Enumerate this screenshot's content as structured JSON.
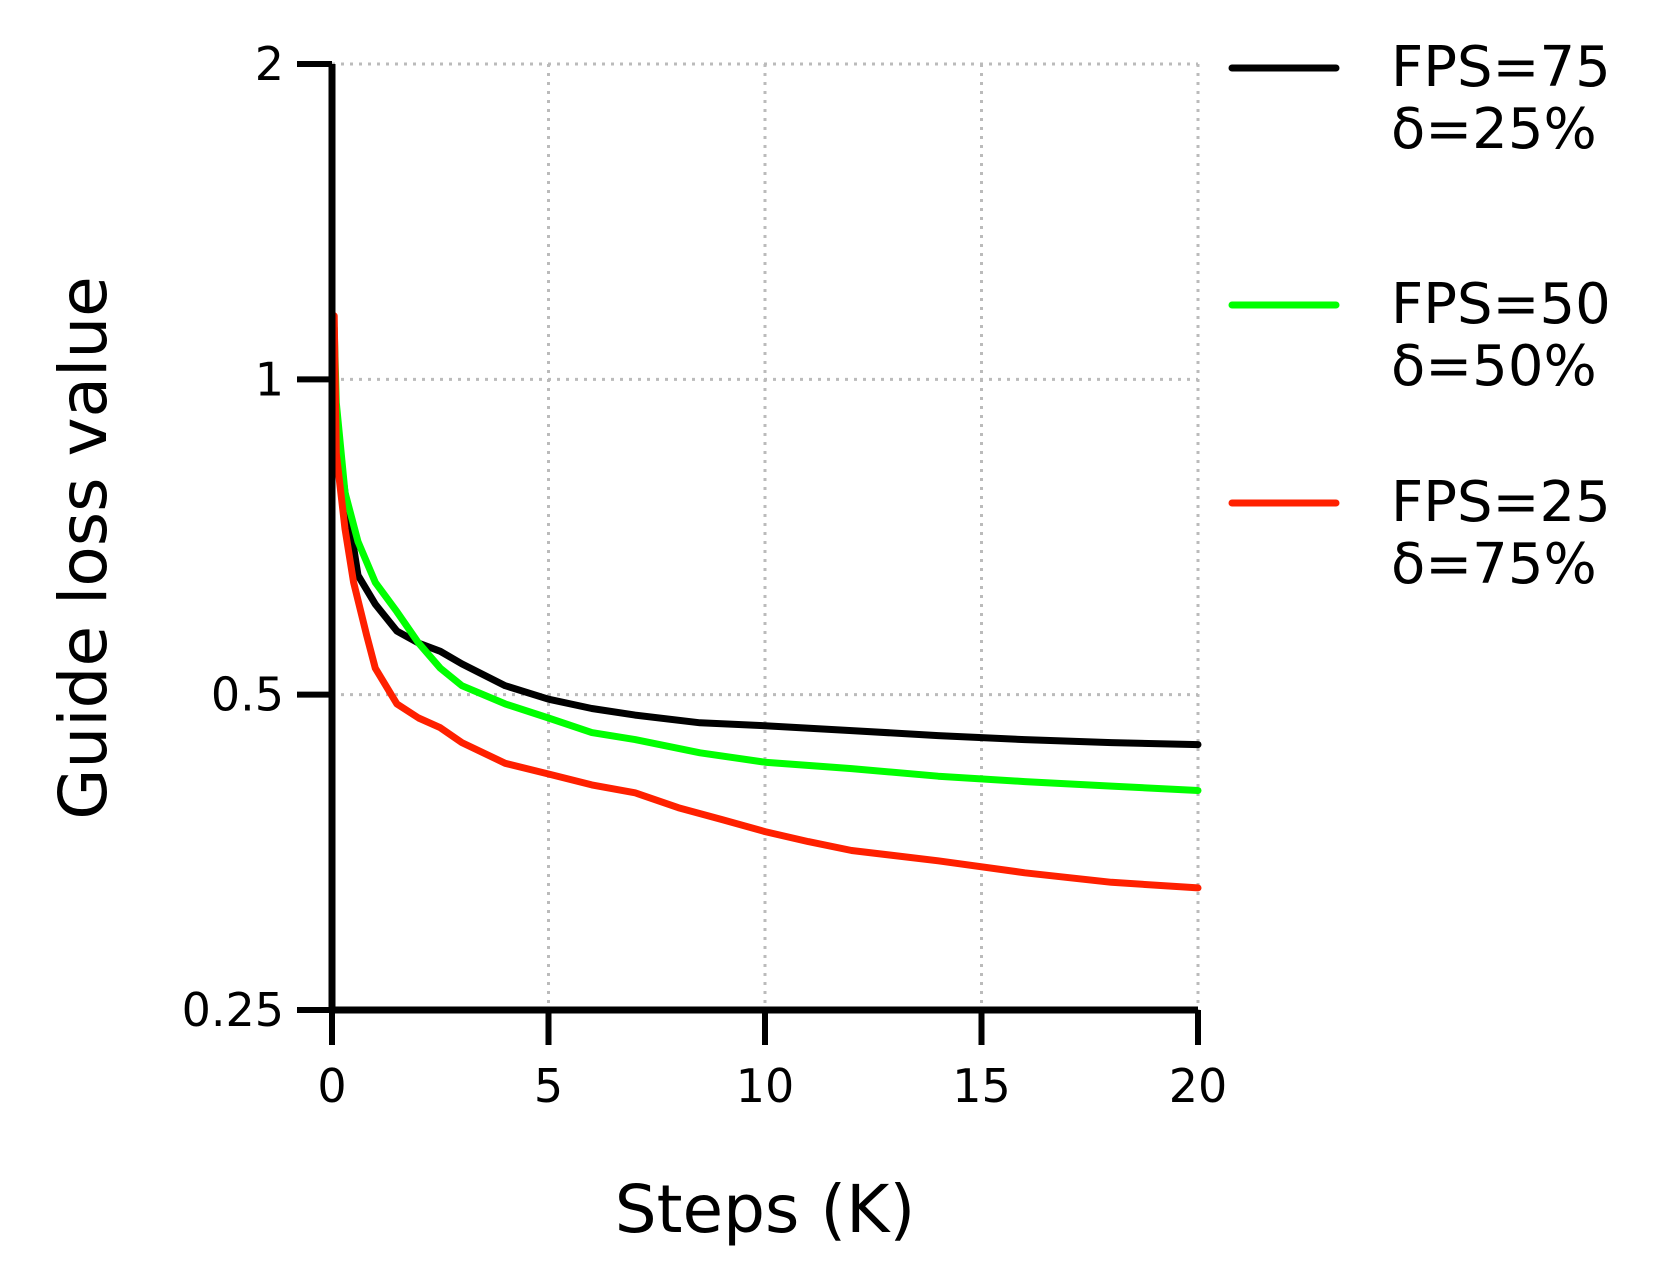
{
  "chart_data": {
    "type": "line",
    "title": "",
    "xlabel": "Steps (K)",
    "ylabel": "Guide loss value",
    "xlim": [
      0,
      20
    ],
    "ylim": [
      0.25,
      2
    ],
    "yscale": "log2",
    "grid": true,
    "legend_position": "right",
    "x_ticks": [
      0,
      5,
      10,
      15,
      20
    ],
    "x_tick_labels": [
      "0",
      "5",
      "10",
      "15",
      "20"
    ],
    "y_ticks": [
      0.25,
      0.5,
      1,
      2
    ],
    "y_tick_labels": [
      "0.25",
      "0.5",
      "1",
      "2"
    ],
    "series": [
      {
        "name": "FPS=75",
        "name_line2": "δ=25%",
        "color": "#000000",
        "x": [
          0,
          0.05,
          0.1,
          0.3,
          0.6,
          1.0,
          1.5,
          2.0,
          2.5,
          3.0,
          4.0,
          5.0,
          6.0,
          7.0,
          8.5,
          10.0,
          12.0,
          14.0,
          16.0,
          18.0,
          20.0
        ],
        "y": [
          0.92,
          1.03,
          0.9,
          0.78,
          0.65,
          0.61,
          0.575,
          0.56,
          0.55,
          0.535,
          0.51,
          0.495,
          0.485,
          0.478,
          0.47,
          0.467,
          0.462,
          0.457,
          0.453,
          0.45,
          0.448
        ]
      },
      {
        "name": "FPS=50",
        "name_line2": "δ=50%",
        "color": "#00ff00",
        "x": [
          0,
          0.05,
          0.1,
          0.3,
          0.6,
          1.0,
          1.5,
          2.0,
          2.5,
          3.0,
          4.0,
          5.0,
          6.0,
          7.0,
          8.5,
          10.0,
          12.0,
          14.0,
          16.0,
          18.0,
          20.0
        ],
        "y": [
          0.9,
          1.12,
          0.95,
          0.78,
          0.7,
          0.64,
          0.6,
          0.56,
          0.53,
          0.51,
          0.49,
          0.475,
          0.46,
          0.453,
          0.44,
          0.431,
          0.425,
          0.418,
          0.413,
          0.409,
          0.405
        ]
      },
      {
        "name": "FPS=25",
        "name_line2": "δ=75%",
        "color": "#ff2000",
        "x": [
          0,
          0.05,
          0.1,
          0.3,
          0.5,
          0.8,
          1.0,
          1.5,
          2.0,
          2.5,
          3.0,
          4.0,
          5.0,
          6.0,
          7.0,
          8.0,
          9.0,
          10.0,
          11.0,
          12.0,
          14.0,
          16.0,
          18.0,
          20.0
        ],
        "y": [
          0.9,
          1.15,
          0.85,
          0.72,
          0.64,
          0.57,
          0.53,
          0.49,
          0.475,
          0.465,
          0.45,
          0.43,
          0.42,
          0.41,
          0.403,
          0.39,
          0.38,
          0.37,
          0.362,
          0.355,
          0.347,
          0.338,
          0.331,
          0.327
        ]
      }
    ]
  }
}
